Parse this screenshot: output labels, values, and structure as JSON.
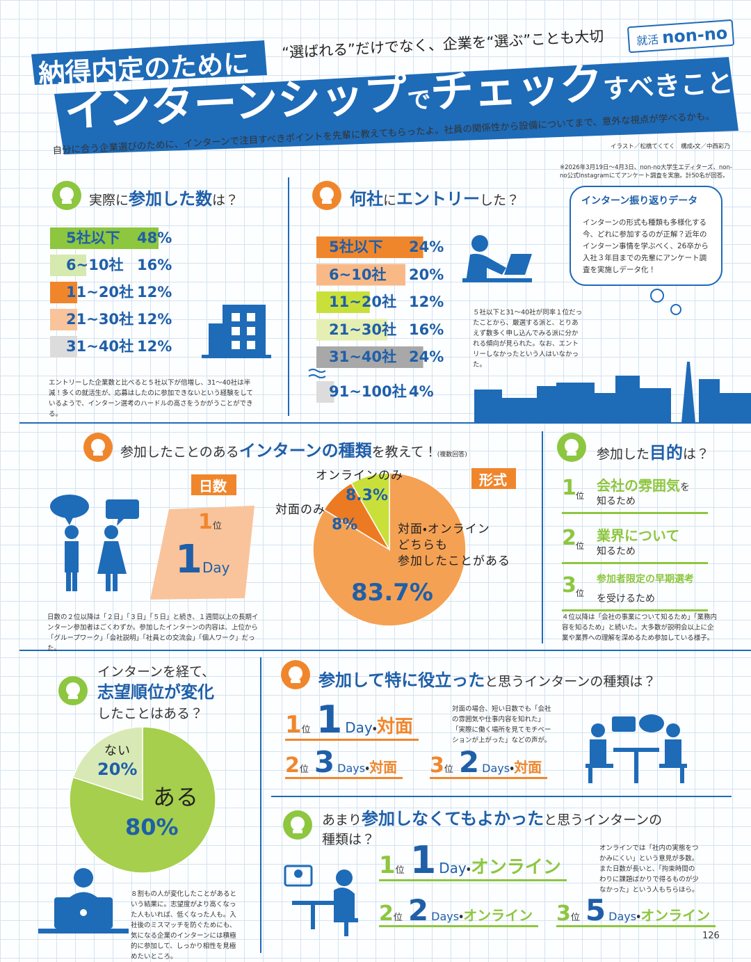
{
  "header": {
    "title_small": "納得内定のために",
    "tagline": "“選ばれる”だけでなく、企業を“選ぶ”ことも大切",
    "brand_prefix": "就活",
    "brand_name": "non-no",
    "title_main": "インターンシップ",
    "title_de": "で",
    "title_check": "チェック",
    "title_end": "すべきこと",
    "lead": "自分に合う企業選びのために、インターンで注目すべきポイントを先輩に教えてもらったよ。社員の関係性から設備についてまで、意外な視点が学べるかも。",
    "credit": "イラスト／松橋てくてく　構成・文／中西彩乃",
    "survey_note": "※2026年3月19日～4月3日、non-no大学生エディターズ、non-no公式Instagramにてアンケート調査を実施。計50名が回答。"
  },
  "participated_count": {
    "title": [
      "実際に",
      "参加した数",
      "は？"
    ],
    "caption": "エントリーした企業数と比べると５社以下が倍増し、31～40社は半減！多くの就活生が、応募はしたのに参加できないという経験をしているようで、インターン選考のハードルの高さをうかがうことができる。"
  },
  "entry_count": {
    "title": [
      "何社",
      "に",
      "エントリー",
      "した？"
    ],
    "caption": "５社以下と31～40社が同率１位だったことから、厳選する派と、とりあえず数多く申し込んでみる派に分かれる傾向が見られた。なお、エントリーしなかったという人はいなかった。"
  },
  "review_box": {
    "title": "インターン振り返りデータ",
    "text": "インターンの形式も種類も多様化する今、どれに参加するのが正解？近年のインターン事情を学ぶべく、26卒から入社３年目までの先輩にアンケート調査を実施しデータ化！"
  },
  "intern_types": {
    "title": [
      "参加したことのある",
      "インターンの種類",
      "を教えて！"
    ],
    "note": "(複数回答)",
    "days": {
      "label": "日数",
      "rank": "1",
      "rank_suffix": "位",
      "num": "1",
      "unit": "Day"
    },
    "format_label": "形式",
    "caption": "日数の２位以降は「２日」「３日」「５日」と続き、１週間以上の長期インターン参加者はごくわずか。参加したインターンの内容は、上位から「グループワーク」「会社説明」「社員との交流会」「個人ワーク」だった。"
  },
  "purpose": {
    "title": [
      "参加した",
      "目的",
      "は？"
    ],
    "ranks": [
      {
        "rank": "1",
        "rank_suffix": "位",
        "main": "会社の雰囲気",
        "particle": "を",
        "sub": "知るため"
      },
      {
        "rank": "2",
        "rank_suffix": "位",
        "main": "業界について",
        "particle": null,
        "sub": "知るため"
      },
      {
        "rank": "3",
        "rank_suffix": "位",
        "main": "参加者限定の早期選考",
        "particle": null,
        "sub": "を受けるため"
      }
    ],
    "caption": "４位以降は「会社の事業について知るため」「業務内容を知るため」と続いた。大多数が説明会以上に企業や業界への理解を深めるため参加している様子。"
  },
  "preference_change": {
    "title": [
      "インターンを経て、",
      "志望順位が変化",
      "したことはある？"
    ],
    "caption": "８割もの人が変化したことがあるという結果に。志望度がより高くなった人もいれば、低くなった人も。入社後のミスマッチを防ぐためにも、気になる企業のインターンには積極的に参加して、しっかり相性を見極めたいところ。"
  },
  "most_useful": {
    "title": [
      "参加して特に役立った",
      "と思うインターンの種類は？"
    ],
    "ranks": [
      {
        "rank": "1",
        "rank_suffix": "位",
        "num": "1",
        "unit": "Day",
        "separator": "・",
        "format": "対面"
      },
      {
        "rank": "2",
        "rank_suffix": "位",
        "num": "3",
        "unit": "Days",
        "separator": "・",
        "format": "対面"
      },
      {
        "rank": "3",
        "rank_suffix": "位",
        "num": "2",
        "unit": "Days",
        "separator": "・",
        "format": "対面"
      }
    ],
    "caption": "対面の場合、短い日数でも「会社の雰囲気や仕事内容を知れた」「実際に働く場所を見てモチベーションが上がった」などの声が。"
  },
  "least_needed": {
    "title": [
      "あまり",
      "参加しなくてもよかった",
      "と思うインターンの",
      "種類は？"
    ],
    "ranks": [
      {
        "rank": "1",
        "rank_suffix": "位",
        "num": "1",
        "unit": "Day",
        "separator": "・",
        "format": "オンライン"
      },
      {
        "rank": "2",
        "rank_suffix": "位",
        "num": "2",
        "unit": "Days",
        "separator": "・",
        "format": "オンライン"
      },
      {
        "rank": "3",
        "rank_suffix": "位",
        "num": "5",
        "unit": "Days",
        "separator": "・",
        "format": "オンライン"
      }
    ],
    "caption": "オンラインでは「社内の実態をつかみにくい」という意見が多数。また日数が長いと、「拘束時間のわりに課題ばかりで得るものが少なかった」という人もちらほら。"
  },
  "page_number": "126",
  "chart_data": [
    {
      "type": "bar",
      "orientation": "horizontal",
      "categories": [
        "5社以下",
        "6~10社",
        "11~20社",
        "21~30社",
        "31~40社"
      ],
      "values": [
        48,
        16,
        12,
        12,
        12
      ],
      "value_labels": [
        "48%",
        "16%",
        "12%",
        "12%",
        "12%"
      ],
      "colors": [
        "#8dc63f",
        "#d6e9ae",
        "#f0862c",
        "#f9c49b",
        "#dcdcdc"
      ]
    },
    {
      "type": "bar",
      "orientation": "horizontal",
      "categories": [
        "5社以下",
        "6~10社",
        "11~20社",
        "21~30社",
        "31~40社",
        "91~100社"
      ],
      "values": [
        24,
        20,
        12,
        16,
        24,
        4
      ],
      "value_labels": [
        "24%",
        "20%",
        "12%",
        "16%",
        "24%",
        "4%"
      ],
      "colors": [
        "#f0862c",
        "#f9b987",
        "#c9e03a",
        "#e6efb3",
        "#a8a8a8",
        "#dcdcdc"
      ]
    },
    {
      "type": "pie",
      "categories": [
        "対面・オンライン\nどちらも\n参加したことがある",
        "対面のみ",
        "オンラインのみ"
      ],
      "values": [
        83.7,
        8,
        8.3
      ],
      "value_labels": [
        "83.7%",
        "8%",
        "8.3%"
      ],
      "colors": [
        "#f5a153",
        "#ec7a22",
        "#c9e03a"
      ]
    },
    {
      "type": "pie",
      "categories": [
        "ある",
        "ない"
      ],
      "values": [
        80,
        20
      ],
      "value_labels": [
        "80%",
        "20%"
      ],
      "colors": [
        "#a5cf4c",
        "#d8e9b6"
      ]
    }
  ]
}
